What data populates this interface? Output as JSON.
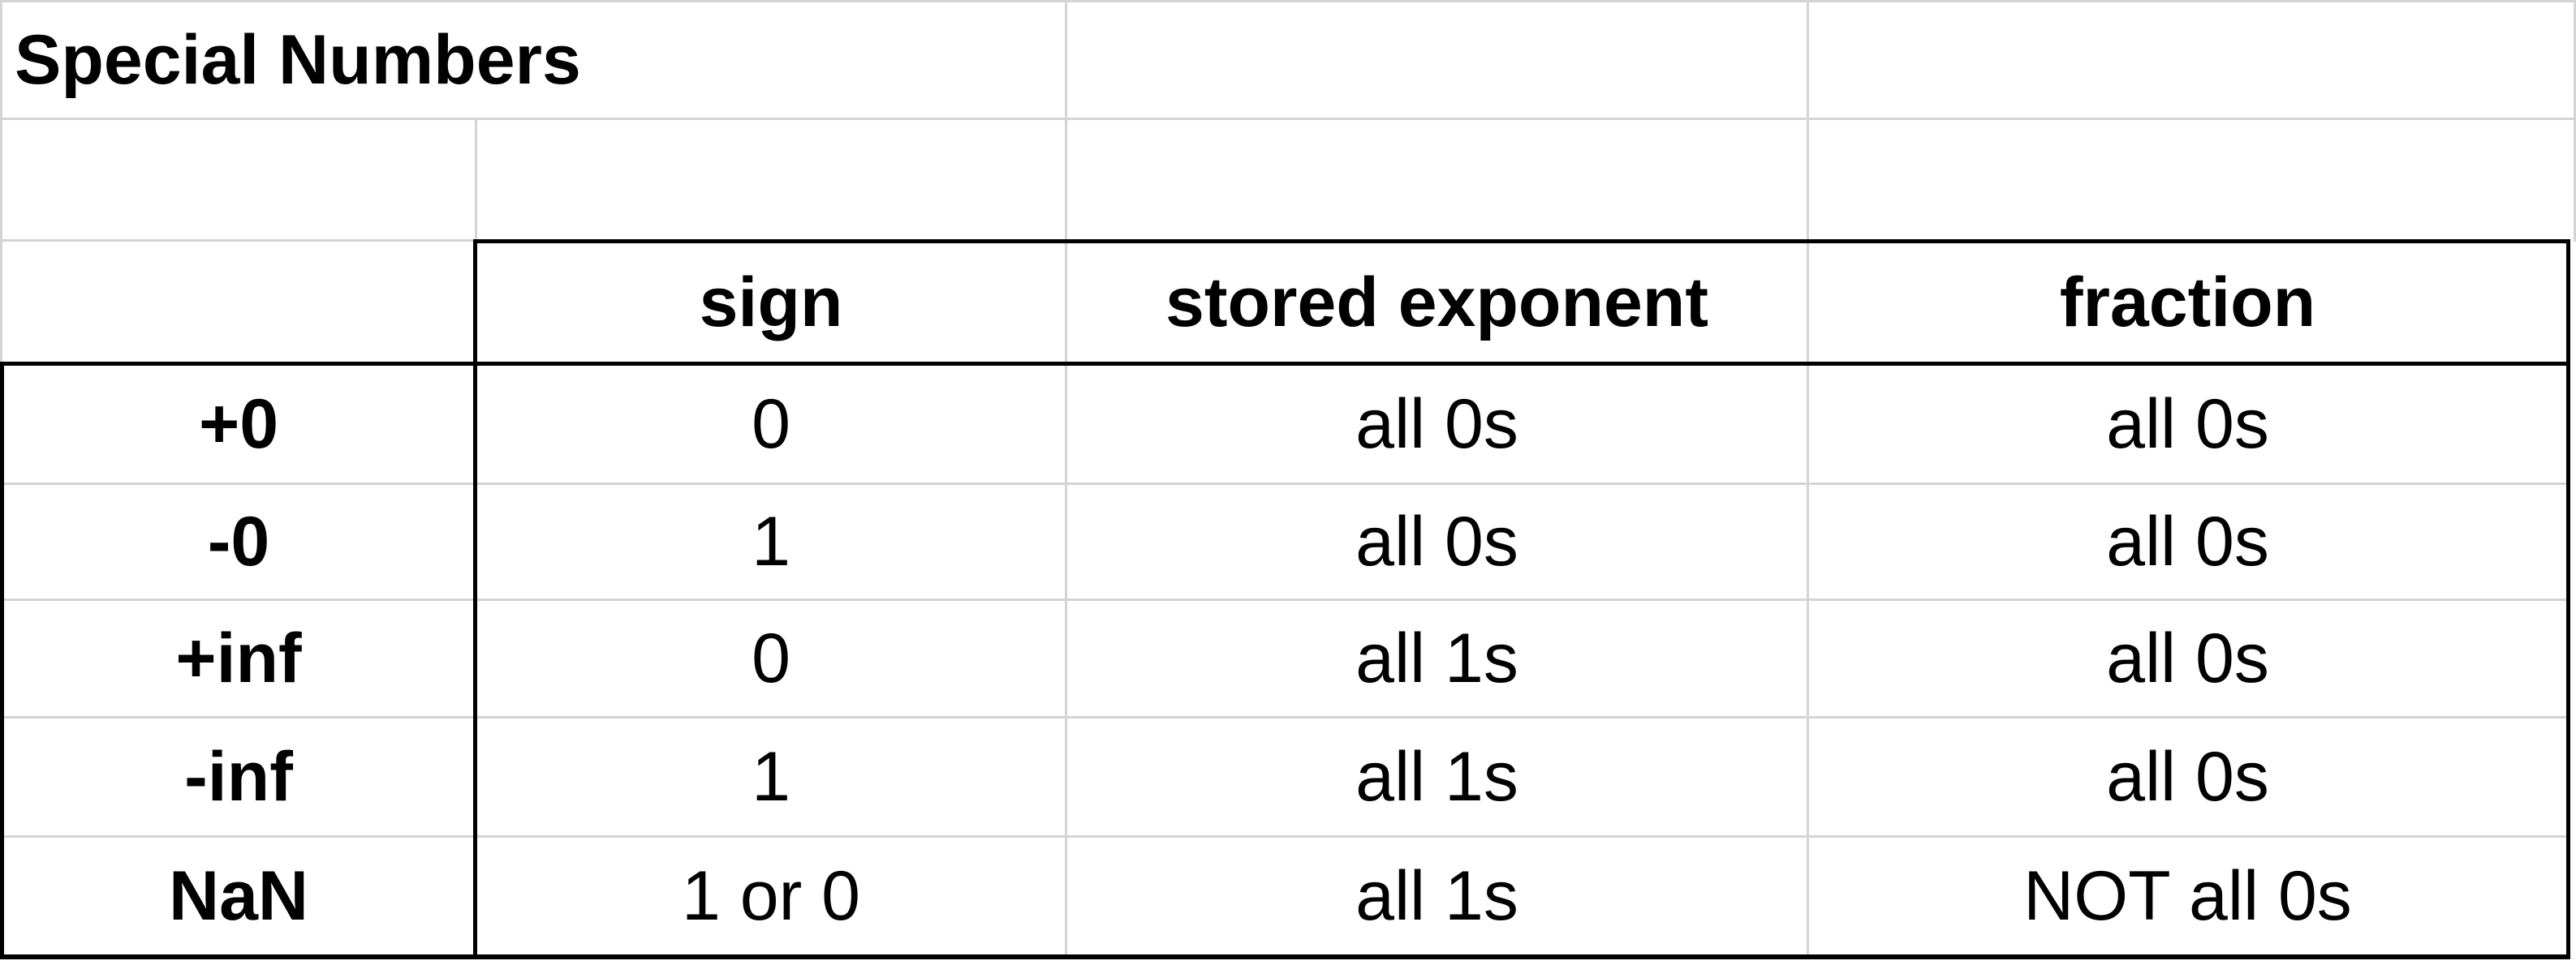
{
  "sheet": {
    "title": "Special Numbers",
    "headers": [
      "",
      "sign",
      "stored exponent",
      "fraction"
    ],
    "rows": [
      {
        "label": "+0",
        "sign": "0",
        "exponent": "all 0s",
        "fraction": "all 0s"
      },
      {
        "label": "-0",
        "sign": "1",
        "exponent": "all 0s",
        "fraction": "all 0s"
      },
      {
        "label": "+inf",
        "sign": "0",
        "exponent": "all 1s",
        "fraction": "all 0s"
      },
      {
        "label": "-inf",
        "sign": "1",
        "exponent": "all 1s",
        "fraction": "all 0s"
      },
      {
        "label": "NaN",
        "sign": "1 or 0",
        "exponent": "all 1s",
        "fraction": "NOT all 0s"
      }
    ]
  },
  "colors": {
    "gridline": "#d4d4d4",
    "border": "#000000",
    "background": "#ffffff"
  }
}
